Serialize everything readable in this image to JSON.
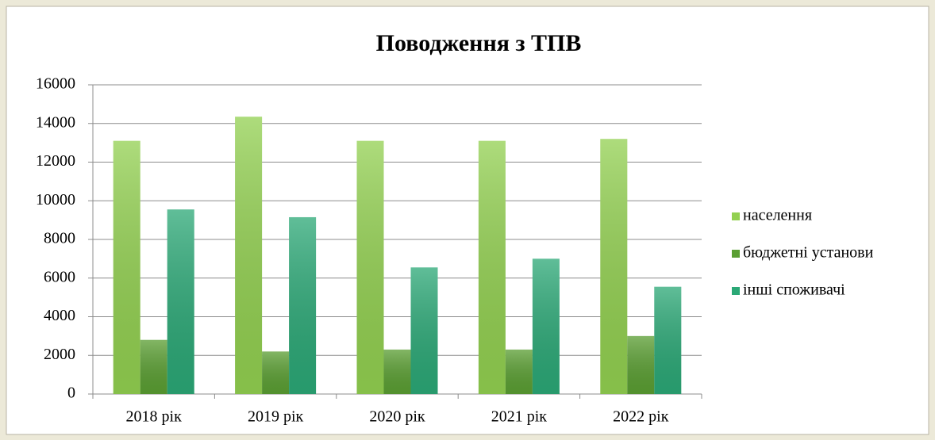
{
  "chart_data": {
    "type": "bar",
    "title": "Поводження з ТПВ",
    "categories": [
      "2018 рік",
      "2019 рік",
      "2020 рік",
      "2021 рік",
      "2022 рік"
    ],
    "series": [
      {
        "name": "населення",
        "color": "#92d050",
        "values": [
          13100,
          14350,
          13100,
          13100,
          13200
        ]
      },
      {
        "name": "бюджетні установи",
        "color": "#5a9e32",
        "values": [
          2800,
          2200,
          2300,
          2300,
          3000
        ]
      },
      {
        "name": "інші споживачі",
        "color": "#2ba876",
        "values": [
          9550,
          9150,
          6550,
          7000,
          5550
        ]
      }
    ],
    "ylim": [
      0,
      16000
    ],
    "yticks": [
      0,
      2000,
      4000,
      6000,
      8000,
      10000,
      12000,
      14000,
      16000
    ],
    "grid": true,
    "legend": "right"
  }
}
